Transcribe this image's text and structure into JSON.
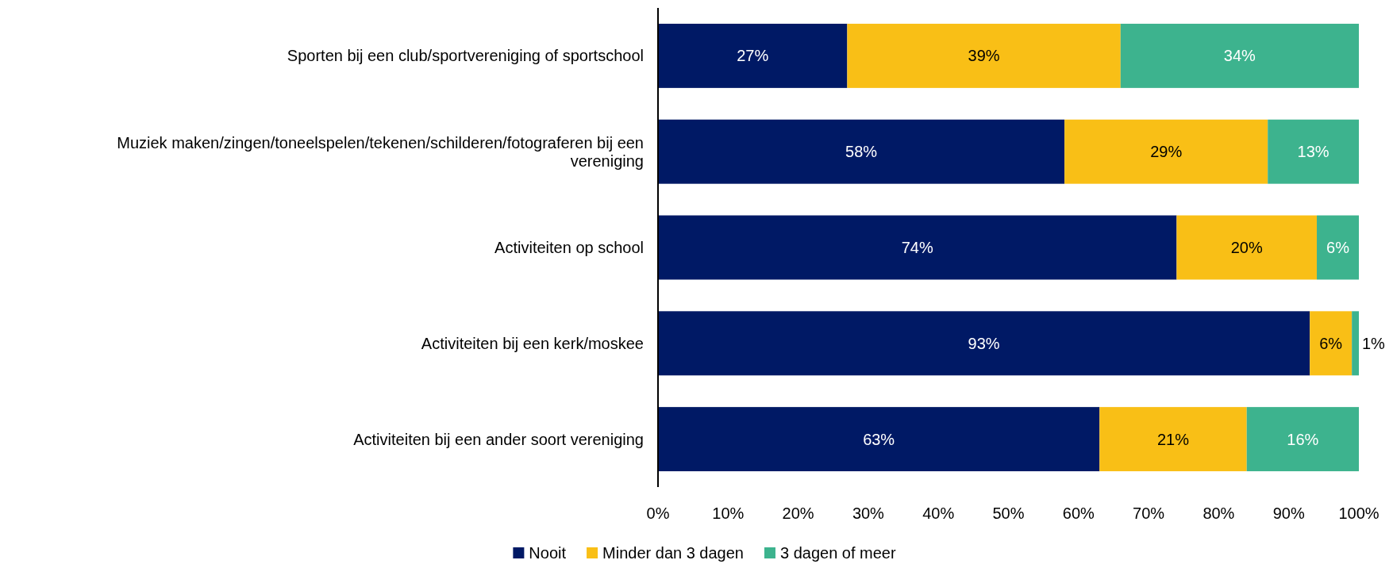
{
  "chart_data": {
    "type": "bar",
    "orientation": "horizontal",
    "stacked": true,
    "categories": [
      "Sporten bij een club/sportvereniging of sportschool",
      "Muziek maken/zingen/toneelspelen/tekenen/schilderen/fotograferen bij een vereniging",
      "Activiteiten op school",
      "Activiteiten bij een kerk/moskee",
      "Activiteiten bij een ander soort vereniging"
    ],
    "series": [
      {
        "name": "Nooit",
        "color": "#001965",
        "values": [
          27,
          58,
          74,
          93,
          63
        ]
      },
      {
        "name": "Minder dan 3 dagen",
        "color": "#f9bf16",
        "values": [
          39,
          29,
          20,
          6,
          21
        ]
      },
      {
        "name": "3 dagen of meer",
        "color": "#3db38e",
        "values": [
          34,
          13,
          6,
          1,
          16
        ]
      }
    ],
    "xlim": [
      0,
      100
    ],
    "xticks": [
      {
        "value": 0,
        "label": "0%"
      },
      {
        "value": 10,
        "label": "10%"
      },
      {
        "value": 20,
        "label": "20%"
      },
      {
        "value": 30,
        "label": "30%"
      },
      {
        "value": 40,
        "label": "40%"
      },
      {
        "value": 50,
        "label": "50%"
      },
      {
        "value": 60,
        "label": "60%"
      },
      {
        "value": 70,
        "label": "70%"
      },
      {
        "value": 80,
        "label": "80%"
      },
      {
        "value": 90,
        "label": "90%"
      },
      {
        "value": 100,
        "label": "100%"
      }
    ],
    "value_labels": [
      [
        "27%",
        "58%",
        "74%",
        "93%",
        "63%"
      ],
      [
        "39%",
        "29%",
        "20%",
        "6%",
        "21%"
      ],
      [
        "34%",
        "13%",
        "6%",
        "1%",
        "16%"
      ]
    ],
    "grid": false,
    "legend": "bottom"
  }
}
